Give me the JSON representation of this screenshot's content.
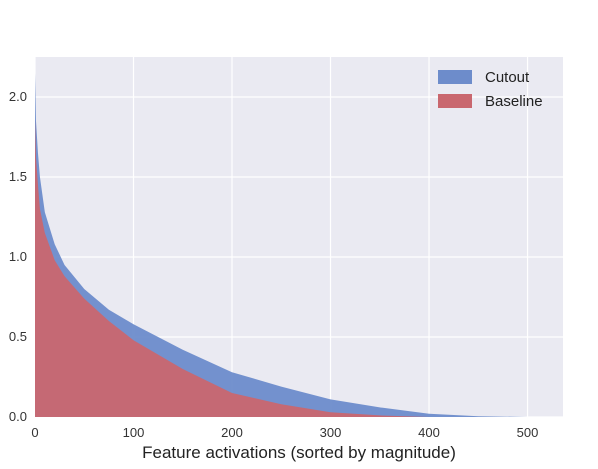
{
  "chart_data": {
    "type": "area",
    "title": "",
    "xlabel": "Feature activations (sorted by magnitude)",
    "ylabel": "",
    "xlim": [
      0,
      536
    ],
    "ylim": [
      0,
      2.25
    ],
    "x_ticks": [
      "0",
      "100",
      "200",
      "300",
      "400",
      "500"
    ],
    "y_ticks": [
      "0.0",
      "0.5",
      "1.0",
      "1.5",
      "2.0"
    ],
    "grid": true,
    "legend_position": "top-right",
    "series": [
      {
        "name": "Cutout",
        "color": "#6d8ccb",
        "x": [
          0,
          1,
          3,
          5,
          10,
          20,
          30,
          50,
          75,
          100,
          150,
          200,
          250,
          300,
          350,
          400,
          450,
          500,
          512
        ],
        "y": [
          2.15,
          1.85,
          1.65,
          1.5,
          1.28,
          1.08,
          0.95,
          0.8,
          0.67,
          0.58,
          0.42,
          0.28,
          0.19,
          0.11,
          0.06,
          0.02,
          0.005,
          0.0,
          0.0
        ]
      },
      {
        "name": "Baseline",
        "color": "#c9676f",
        "x": [
          0,
          1,
          3,
          5,
          10,
          20,
          30,
          50,
          75,
          100,
          150,
          200,
          250,
          300,
          350,
          400,
          450,
          512
        ],
        "y": [
          1.86,
          1.62,
          1.45,
          1.3,
          1.15,
          0.98,
          0.88,
          0.74,
          0.6,
          0.48,
          0.3,
          0.15,
          0.08,
          0.03,
          0.01,
          0.0,
          0.0,
          0.0
        ]
      }
    ]
  }
}
